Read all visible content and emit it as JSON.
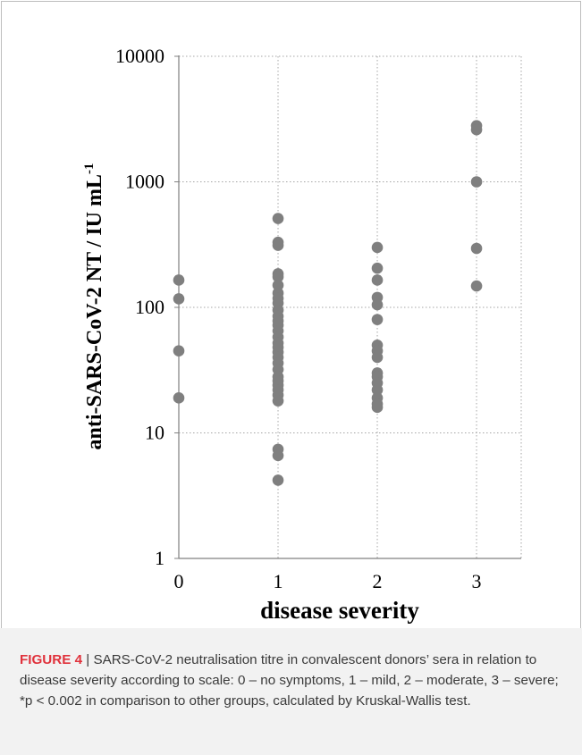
{
  "chart_data": {
    "type": "scatter",
    "xlabel": "disease severity",
    "ylabel": "anti-SARS-CoV-2 NT / IU mL",
    "ylabel_superscript": "-1",
    "y_scale": "log",
    "ylim": [
      1,
      10000
    ],
    "xlim": [
      0,
      3.45
    ],
    "x_ticks": [
      "0",
      "1",
      "2",
      "3"
    ],
    "y_ticks": [
      "1",
      "10",
      "100",
      "1000",
      "10000"
    ],
    "grid": "dotted, both axes",
    "marker_color": "#7f7f7f",
    "series": [
      {
        "points": [
          {
            "x": 0,
            "y": 165
          },
          {
            "x": 0,
            "y": 117
          },
          {
            "x": 0,
            "y": 45
          },
          {
            "x": 0,
            "y": 19
          },
          {
            "x": 1,
            "y": 510
          },
          {
            "x": 1,
            "y": 330
          },
          {
            "x": 1,
            "y": 312
          },
          {
            "x": 1,
            "y": 185
          },
          {
            "x": 1,
            "y": 175
          },
          {
            "x": 1,
            "y": 150
          },
          {
            "x": 1,
            "y": 130
          },
          {
            "x": 1,
            "y": 118
          },
          {
            "x": 1,
            "y": 108
          },
          {
            "x": 1,
            "y": 95
          },
          {
            "x": 1,
            "y": 85
          },
          {
            "x": 1,
            "y": 78
          },
          {
            "x": 1,
            "y": 72
          },
          {
            "x": 1,
            "y": 65
          },
          {
            "x": 1,
            "y": 58
          },
          {
            "x": 1,
            "y": 52
          },
          {
            "x": 1,
            "y": 48
          },
          {
            "x": 1,
            "y": 44
          },
          {
            "x": 1,
            "y": 40
          },
          {
            "x": 1,
            "y": 36
          },
          {
            "x": 1,
            "y": 32
          },
          {
            "x": 1,
            "y": 28
          },
          {
            "x": 1,
            "y": 26
          },
          {
            "x": 1,
            "y": 24
          },
          {
            "x": 1,
            "y": 22
          },
          {
            "x": 1,
            "y": 20
          },
          {
            "x": 1,
            "y": 18
          },
          {
            "x": 1,
            "y": 7.4
          },
          {
            "x": 1,
            "y": 6.6
          },
          {
            "x": 1,
            "y": 4.2
          },
          {
            "x": 2,
            "y": 300
          },
          {
            "x": 2,
            "y": 205
          },
          {
            "x": 2,
            "y": 165
          },
          {
            "x": 2,
            "y": 120
          },
          {
            "x": 2,
            "y": 105
          },
          {
            "x": 2,
            "y": 80
          },
          {
            "x": 2,
            "y": 50
          },
          {
            "x": 2,
            "y": 45
          },
          {
            "x": 2,
            "y": 40
          },
          {
            "x": 2,
            "y": 30
          },
          {
            "x": 2,
            "y": 28
          },
          {
            "x": 2,
            "y": 25
          },
          {
            "x": 2,
            "y": 22
          },
          {
            "x": 2,
            "y": 19
          },
          {
            "x": 2,
            "y": 17
          },
          {
            "x": 2,
            "y": 16
          },
          {
            "x": 3,
            "y": 2800
          },
          {
            "x": 3,
            "y": 2600
          },
          {
            "x": 3,
            "y": 1000
          },
          {
            "x": 3,
            "y": 295
          },
          {
            "x": 3,
            "y": 148
          }
        ]
      }
    ]
  },
  "caption": {
    "label": "FIGURE 4",
    "separator": " | ",
    "text": "SARS-CoV-2 neutralisation titre in convalescent donors’ sera in relation to disease severity according to scale: 0 – no symptoms, 1 – mild, 2 – moderate, 3 – severe; *p < 0.002 in comparison to other groups, calculated by Kruskal-Wallis test."
  }
}
